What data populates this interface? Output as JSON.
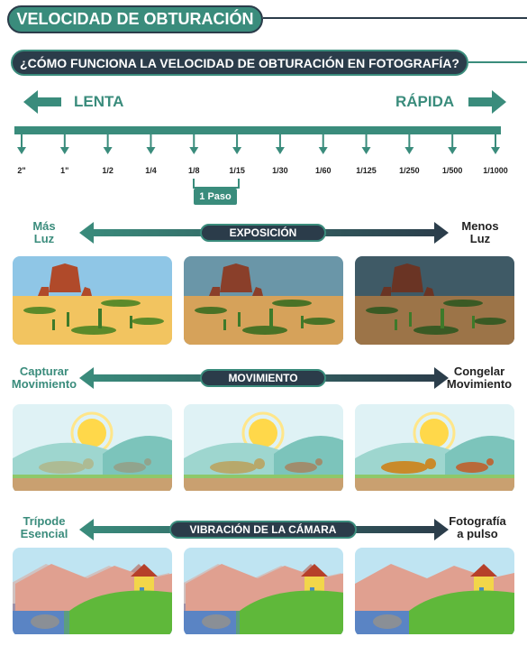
{
  "title": "VELOCIDAD DE OBTURACIÓN",
  "question": "¿CÓMO FUNCIONA LA VELOCIDAD DE OBTURACIÓN EN FOTOGRAFÍA?",
  "scale": {
    "slow_label": "LENTA",
    "fast_label": "RÁPIDA",
    "ticks": [
      "2\"",
      "1\"",
      "1/2",
      "1/4",
      "1/8",
      "1/15",
      "1/30",
      "1/60",
      "1/125",
      "1/250",
      "1/500",
      "1/1000"
    ],
    "step_label": "1 Paso"
  },
  "sections": [
    {
      "name": "EXPOSICIÓN",
      "left": "Más\nLuz",
      "right": "Menos\nLuz"
    },
    {
      "name": "MOVIMIENTO",
      "left": "Capturar\nMovimiento",
      "right": "Congelar\nMovimiento"
    },
    {
      "name": "VIBRACIÓN DE LA CÁMARA",
      "left": "Trípode\nEsencial",
      "right": "Fotografía\na pulso"
    }
  ],
  "colors": {
    "teal": "#3a8c7c",
    "navy": "#2b3c4a"
  }
}
